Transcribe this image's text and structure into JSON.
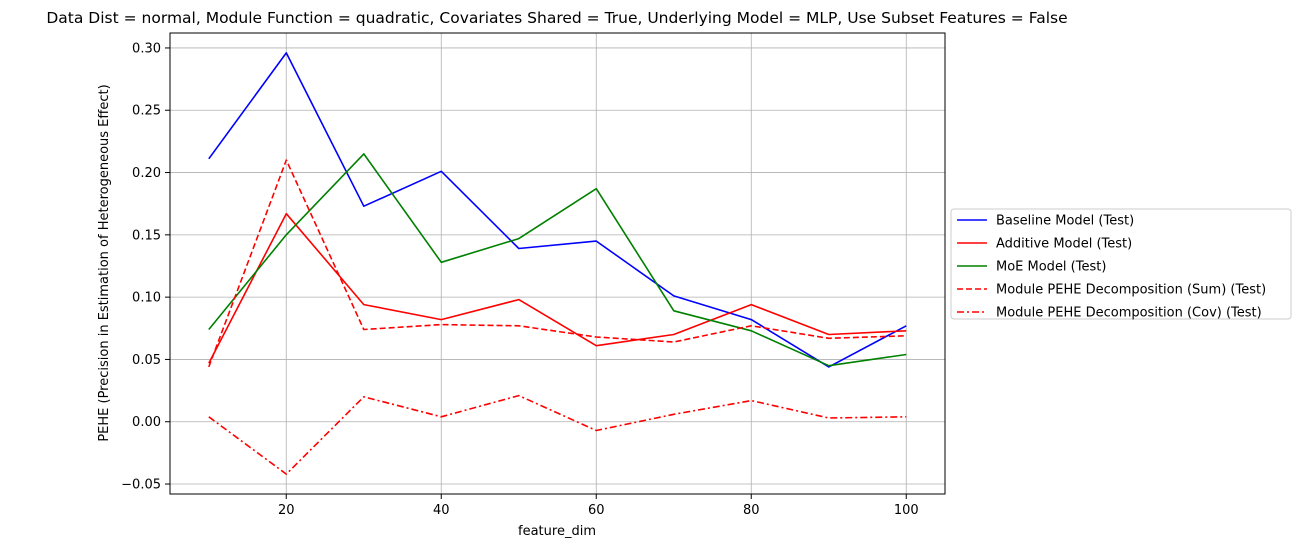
{
  "chart_data": {
    "type": "line",
    "title": "Data Dist = normal, Module Function = quadratic, Covariates Shared = True, Underlying Model = MLP, Use Subset Features = False",
    "xlabel": "feature_dim",
    "ylabel": "PEHE (Precision in Estimation of Heterogeneous Effect)",
    "xlim": [
      5,
      105
    ],
    "ylim": [
      -0.058,
      0.312
    ],
    "xticks": [
      20,
      40,
      60,
      80,
      100
    ],
    "yticks": [
      -0.05,
      0.0,
      0.05,
      0.1,
      0.15,
      0.2,
      0.25,
      0.3
    ],
    "xtick_labels": [
      "20",
      "40",
      "60",
      "80",
      "100"
    ],
    "ytick_labels": [
      "−0.05",
      "0.00",
      "0.05",
      "0.10",
      "0.15",
      "0.20",
      "0.25",
      "0.30"
    ],
    "grid": true,
    "legend_position": "center-right outside",
    "x": [
      10,
      20,
      30,
      40,
      50,
      60,
      70,
      80,
      90,
      100
    ],
    "series": [
      {
        "name": "Baseline Model (Test)",
        "color": "#0000ff",
        "dash": "solid",
        "values": [
          0.211,
          0.296,
          0.173,
          0.201,
          0.139,
          0.145,
          0.101,
          0.082,
          0.044,
          0.077
        ]
      },
      {
        "name": "Additive Model (Test)",
        "color": "#ff0000",
        "dash": "solid",
        "values": [
          0.047,
          0.167,
          0.094,
          0.082,
          0.098,
          0.061,
          0.07,
          0.094,
          0.07,
          0.073
        ]
      },
      {
        "name": "MoE Model (Test)",
        "color": "#008000",
        "dash": "solid",
        "values": [
          0.074,
          0.15,
          0.215,
          0.128,
          0.147,
          0.187,
          0.089,
          0.073,
          0.045,
          0.054
        ]
      },
      {
        "name": "Module PEHE Decomposition (Sum) (Test)",
        "color": "#ff0000",
        "dash": "dashed",
        "values": [
          0.044,
          0.21,
          0.074,
          0.078,
          0.077,
          0.068,
          0.064,
          0.077,
          0.067,
          0.069
        ]
      },
      {
        "name": "Module PEHE Decomposition (Cov) (Test)",
        "color": "#ff0000",
        "dash": "dashdot",
        "values": [
          0.004,
          -0.042,
          0.02,
          0.004,
          0.021,
          -0.007,
          0.006,
          0.017,
          0.003,
          0.004
        ]
      }
    ]
  }
}
